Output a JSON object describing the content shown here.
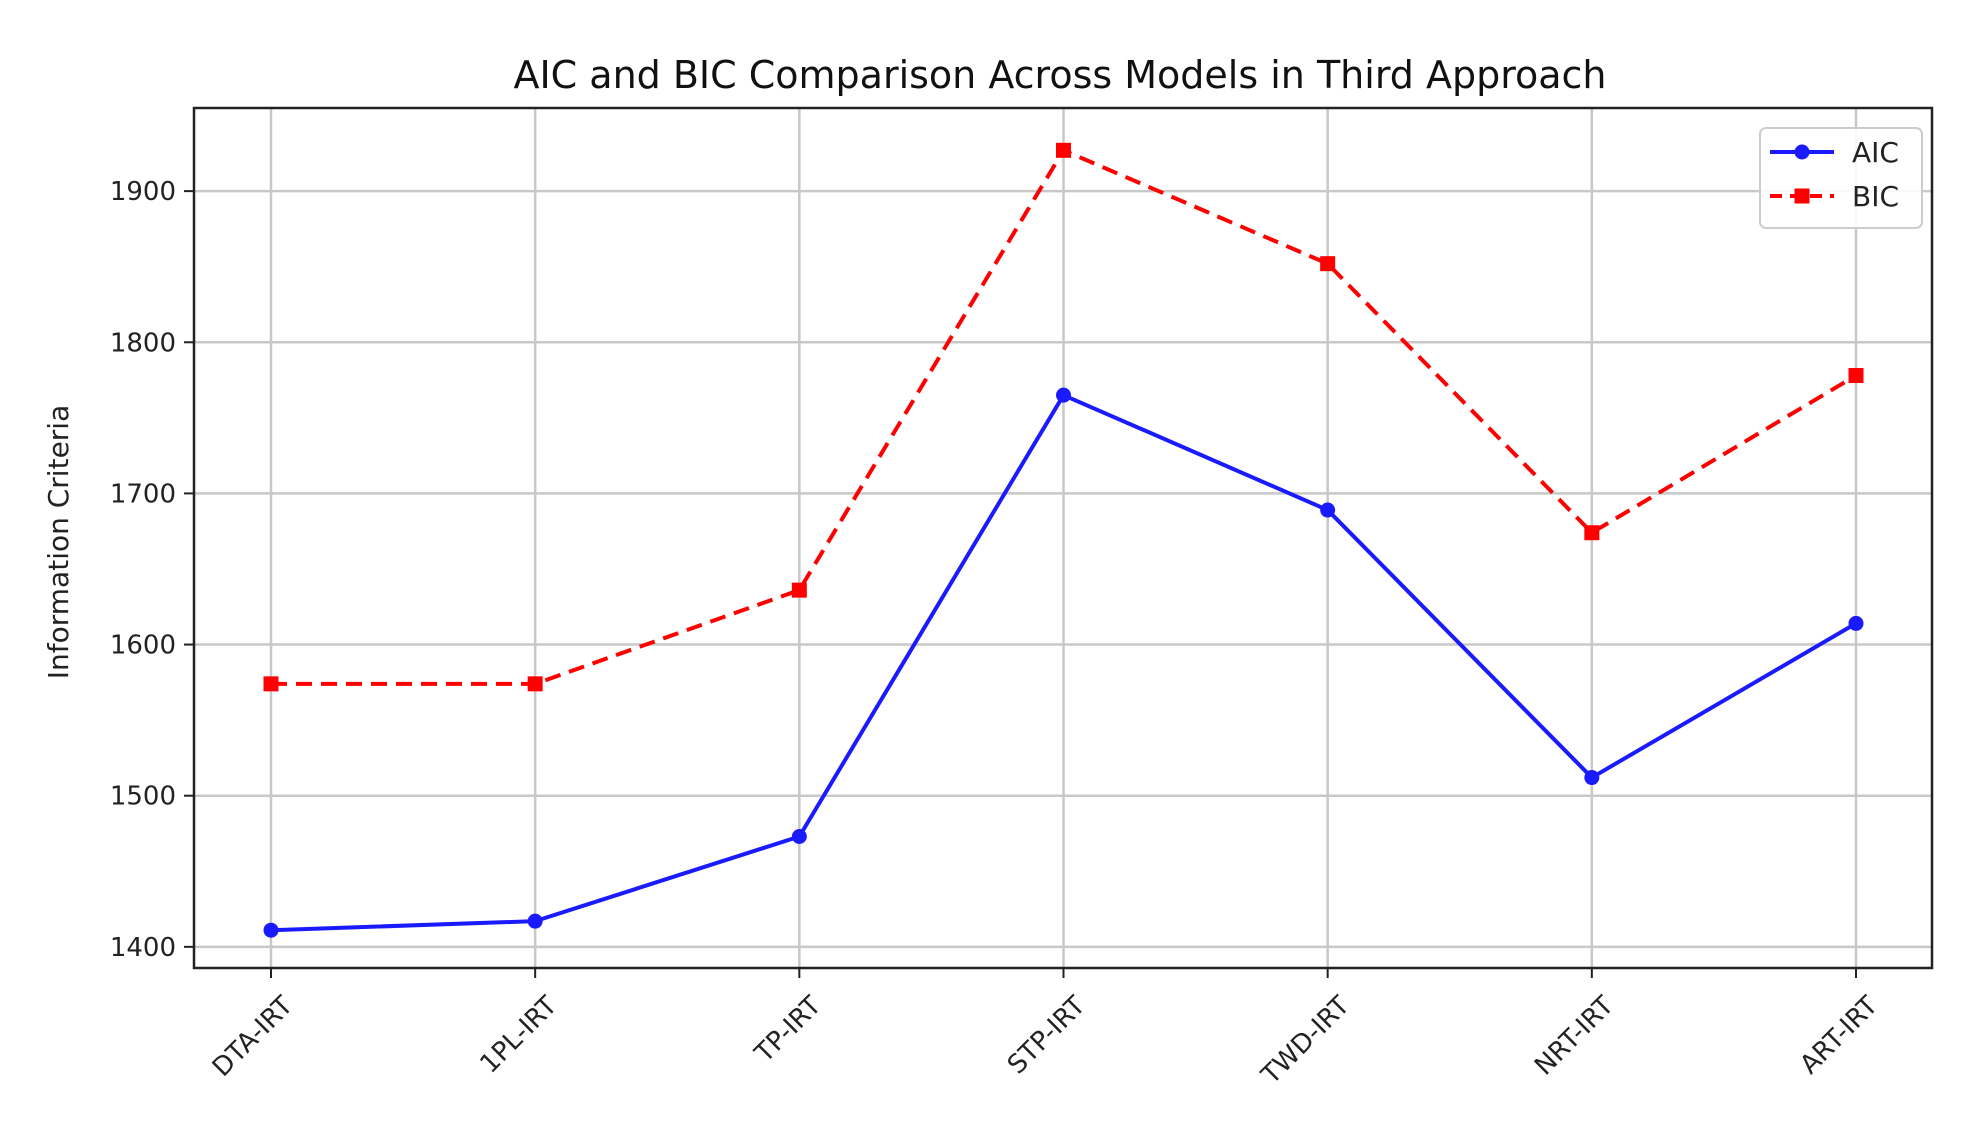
{
  "chart_data": {
    "type": "line",
    "title": "AIC and BIC Comparison Across Models in Third Approach",
    "xlabel": "",
    "ylabel": "Information Criteria",
    "categories": [
      "DTA-IRT",
      "1PL-IRT",
      "TP-IRT",
      "STP-IRT",
      "TWD-IRT",
      "NRT-IRT",
      "ART-IRT"
    ],
    "ylim": [
      1386,
      1955
    ],
    "yticks": [
      1400,
      1500,
      1600,
      1700,
      1800,
      1900
    ],
    "grid": true,
    "legend_position": "top-right",
    "series": [
      {
        "name": "AIC",
        "values": [
          1411,
          1417,
          1473,
          1765,
          1689,
          1512,
          1614
        ],
        "color": "#1a1aff",
        "line_style": "solid",
        "marker": "circle"
      },
      {
        "name": "BIC",
        "values": [
          1574,
          1574,
          1636,
          1927,
          1852,
          1674,
          1778
        ],
        "color": "#ff0000",
        "line_style": "dashed",
        "marker": "square"
      }
    ]
  }
}
